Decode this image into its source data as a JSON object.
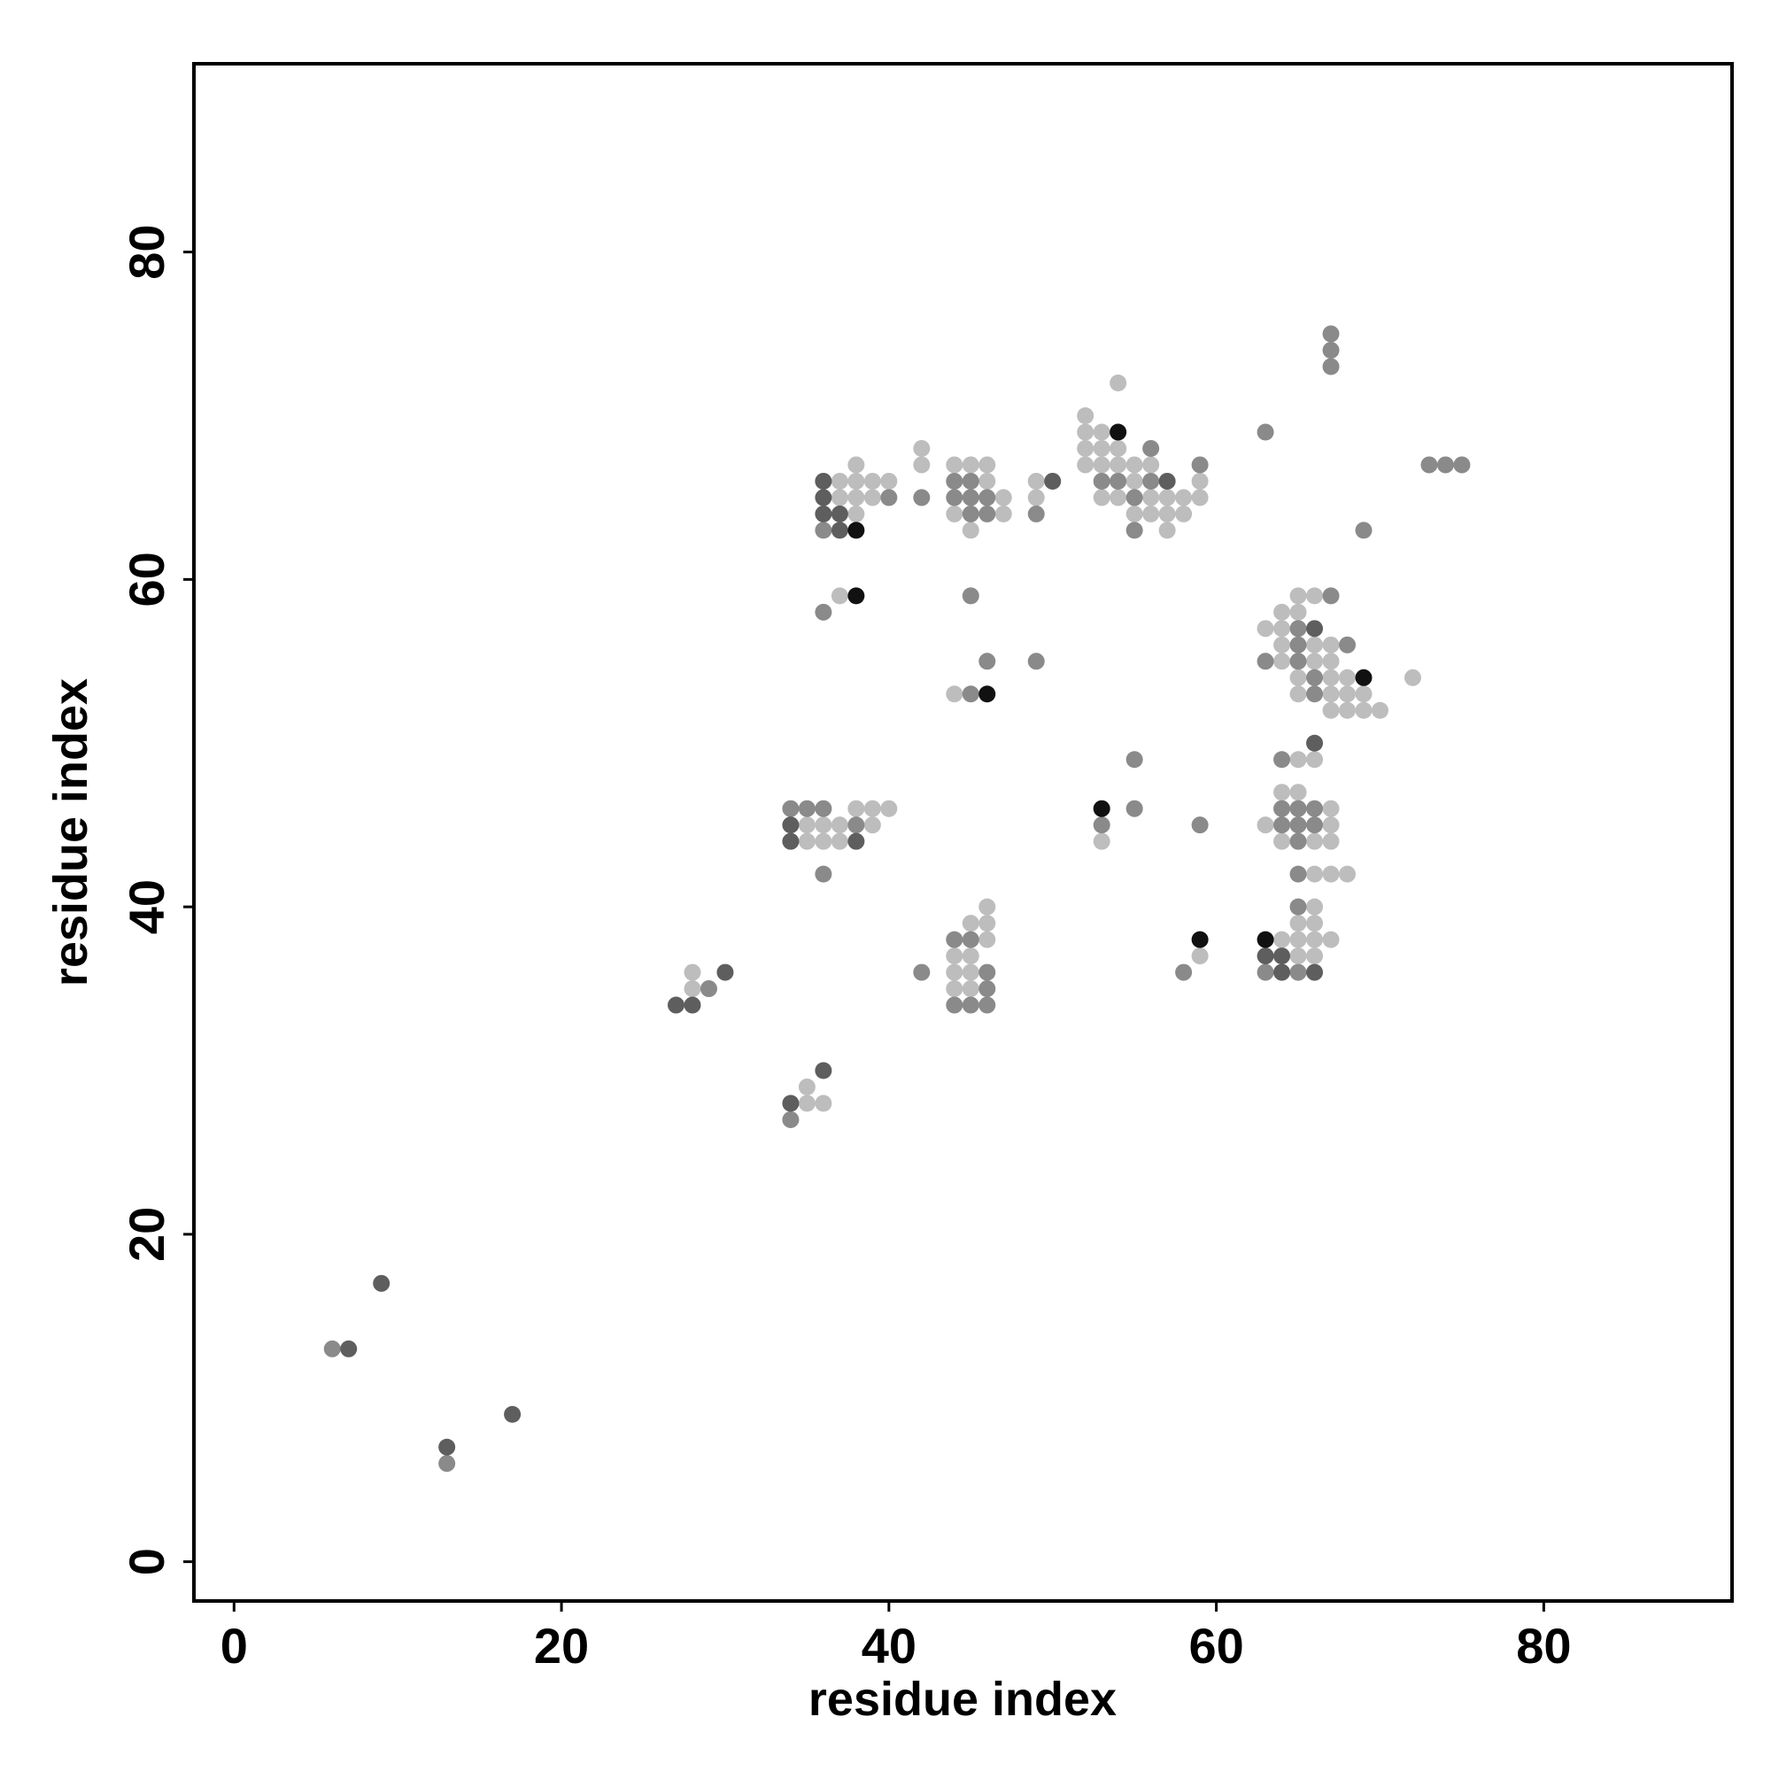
{
  "chart_data": {
    "type": "scatter",
    "xlabel": "residue index",
    "ylabel": "residue index",
    "xlim": [
      -2.45,
      91.5
    ],
    "ylim": [
      -2.4,
      91.5
    ],
    "xticks": [
      0,
      20,
      40,
      60,
      80
    ],
    "yticks": [
      0,
      20,
      40,
      60,
      80
    ],
    "series": [
      {
        "color": "#bdbdbd",
        "x": [
          28,
          28,
          35,
          35,
          36,
          38,
          39,
          40,
          35,
          36,
          37,
          39,
          35,
          36,
          37,
          38,
          37,
          38,
          39,
          40,
          37,
          38,
          39,
          38,
          37,
          42,
          42,
          44,
          45,
          46,
          46,
          47,
          44,
          47,
          45,
          44,
          49,
          49,
          46,
          45,
          46,
          46,
          44,
          45,
          44,
          45,
          44,
          45,
          54,
          52,
          52,
          53,
          52,
          53,
          54,
          52,
          53,
          54,
          55,
          56,
          55,
          53,
          54,
          56,
          57,
          58,
          59,
          59,
          55,
          56,
          57,
          58,
          57,
          53,
          59,
          65,
          66,
          64,
          65,
          63,
          64,
          64,
          66,
          67,
          64,
          66,
          67,
          65,
          67,
          68,
          65,
          67,
          68,
          69,
          67,
          68,
          69,
          70,
          72,
          65,
          66,
          64,
          65,
          67,
          63,
          67,
          64,
          66,
          67,
          66,
          67,
          68,
          66,
          65,
          66,
          64,
          65,
          66,
          67,
          65,
          66
        ],
        "y": [
          35,
          36,
          28,
          29,
          28,
          46,
          46,
          46,
          45,
          45,
          45,
          45,
          44,
          44,
          44,
          67,
          66,
          66,
          66,
          66,
          65,
          65,
          65,
          64,
          59,
          68,
          67,
          67,
          67,
          67,
          66,
          65,
          64,
          64,
          63,
          53,
          66,
          65,
          40,
          39,
          39,
          38,
          37,
          37,
          36,
          36,
          35,
          35,
          72,
          70,
          69,
          69,
          68,
          68,
          68,
          67,
          67,
          67,
          67,
          67,
          66,
          65,
          65,
          65,
          65,
          65,
          65,
          66,
          64,
          64,
          64,
          64,
          63,
          44,
          37,
          59,
          59,
          58,
          58,
          57,
          57,
          56,
          56,
          56,
          55,
          55,
          55,
          54,
          54,
          54,
          53,
          53,
          53,
          53,
          52,
          52,
          52,
          52,
          54,
          49,
          49,
          47,
          47,
          46,
          45,
          45,
          44,
          44,
          44,
          42,
          42,
          42,
          40,
          39,
          39,
          38,
          38,
          38,
          38,
          37,
          37
        ]
      },
      {
        "color": "#8a8a8a",
        "x": [
          6,
          13,
          29,
          34,
          34,
          35,
          36,
          38,
          36,
          36,
          40,
          36,
          42,
          42,
          44,
          45,
          44,
          45,
          46,
          45,
          46,
          45,
          46,
          45,
          49,
          49,
          44,
          45,
          46,
          46,
          44,
          45,
          46,
          56,
          59,
          53,
          54,
          56,
          55,
          55,
          55,
          55,
          53,
          59,
          58,
          63,
          69,
          67,
          67,
          67,
          73,
          74,
          75,
          67,
          65,
          65,
          68,
          63,
          65,
          66,
          66,
          64,
          64,
          65,
          66,
          64,
          65,
          66,
          65,
          65,
          65,
          63,
          65
        ],
        "y": [
          13,
          6,
          35,
          27,
          46,
          46,
          46,
          45,
          42,
          63,
          65,
          58,
          65,
          36,
          66,
          66,
          65,
          65,
          65,
          64,
          64,
          59,
          55,
          53,
          64,
          55,
          38,
          38,
          36,
          35,
          34,
          34,
          34,
          68,
          67,
          66,
          66,
          66,
          65,
          63,
          49,
          46,
          45,
          45,
          36,
          69,
          63,
          75,
          74,
          73,
          67,
          67,
          67,
          59,
          57,
          56,
          56,
          55,
          55,
          54,
          53,
          49,
          46,
          46,
          46,
          45,
          45,
          45,
          44,
          42,
          40,
          36,
          36
        ]
      },
      {
        "color": "#5e5e5e",
        "x": [
          7,
          9,
          13,
          17,
          27,
          28,
          34,
          36,
          30,
          36,
          36,
          36,
          37,
          37,
          34,
          34,
          38,
          50,
          57,
          66,
          63,
          64,
          64,
          66,
          66
        ],
        "y": [
          13,
          17,
          7,
          9,
          34,
          34,
          28,
          30,
          36,
          66,
          65,
          64,
          64,
          63,
          45,
          44,
          44,
          66,
          66,
          57,
          37,
          37,
          36,
          36,
          50
        ]
      },
      {
        "color": "#111111",
        "x": [
          38,
          38,
          46,
          54,
          53,
          59,
          69,
          63
        ],
        "y": [
          63,
          59,
          53,
          69,
          46,
          38,
          54,
          38
        ]
      }
    ]
  }
}
